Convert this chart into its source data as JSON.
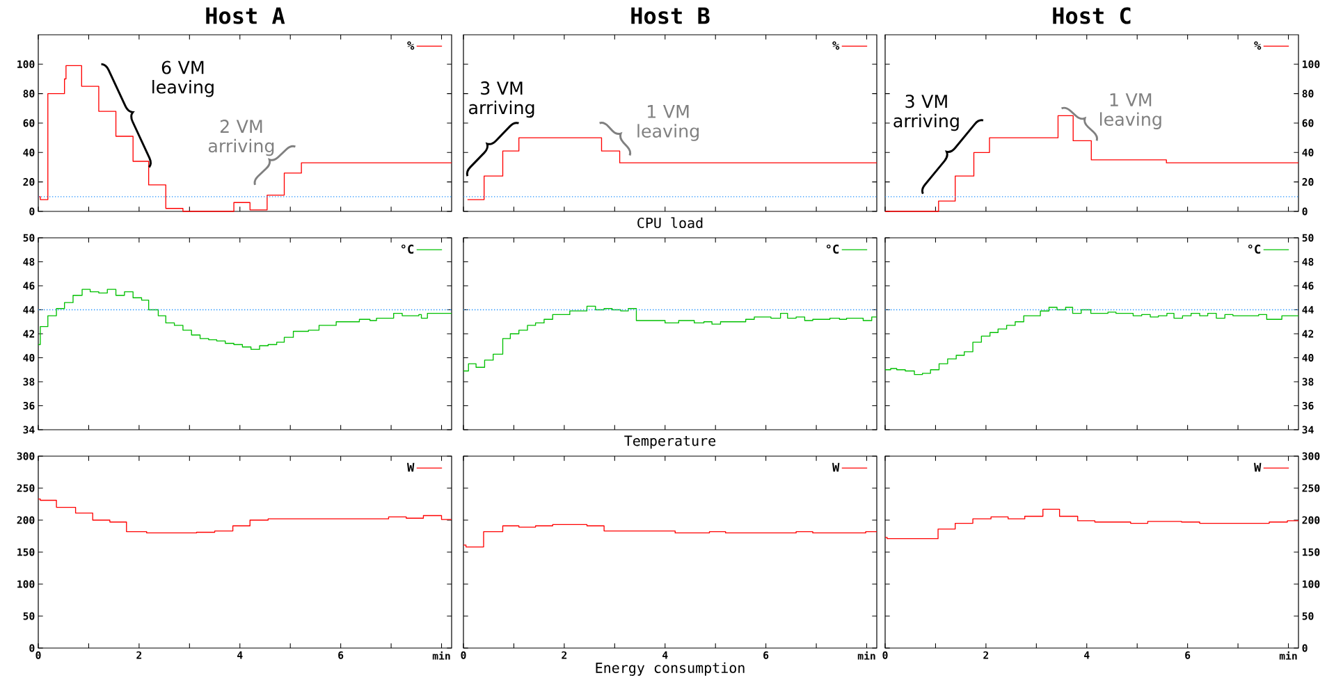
{
  "chart_data": [
    {
      "type": "step",
      "title": "Host A",
      "xlim": [
        0,
        8.2
      ],
      "xticks": [
        0,
        {
          "value": 1,
          "label": null
        },
        2,
        {
          "value": 3,
          "label": null
        },
        4,
        {
          "value": 5,
          "label": null
        },
        6,
        {
          "value": 7,
          "label": null
        },
        {
          "value": 8,
          "label": null
        }
      ],
      "ylim": [
        0,
        120
      ],
      "yticks": [
        0,
        20,
        40,
        60,
        80,
        100
      ],
      "tick_labels": "y",
      "legend": "top right",
      "ref_lines": [
        {
          "axis": "y",
          "value": 10,
          "color": "#1e90ff",
          "line_style": "dotted"
        }
      ],
      "annotations": [
        "6 VM leaving",
        "2 VM arriving"
      ],
      "series": [
        {
          "name": "%",
          "color": "#ff0000",
          "x": [
            0,
            0.04,
            0.19,
            0.52,
            0.55,
            0.86,
            1.2,
            1.54,
            1.88,
            2.19,
            2.53,
            2.87,
            3.88,
            4.2,
            4.54,
            4.88,
            5.22,
            8.2
          ],
          "values": [
            10,
            8,
            80,
            90,
            99,
            85,
            68,
            51,
            34,
            18,
            2,
            0,
            6,
            1,
            11,
            26,
            33,
            33
          ]
        }
      ]
    },
    {
      "type": "step",
      "title": "Host B",
      "xlabel": "CPU load",
      "xlim": [
        0,
        8.2
      ],
      "xticks": [
        0,
        {
          "value": 1,
          "label": null
        },
        2,
        {
          "value": 3,
          "label": null
        },
        4,
        {
          "value": 5,
          "label": null
        },
        6,
        {
          "value": 7,
          "label": null
        },
        {
          "value": 8,
          "label": null
        }
      ],
      "ylim": [
        0,
        120
      ],
      "yticks": [
        0,
        20,
        40,
        60,
        80,
        100
      ],
      "tick_labels": false,
      "legend": "top right",
      "ref_lines": [
        {
          "axis": "y",
          "value": 10,
          "color": "#1e90ff",
          "line_style": "dotted"
        }
      ],
      "annotations": [
        "3 VM arriving",
        "1 VM leaving"
      ],
      "series": [
        {
          "name": "%",
          "color": "#ff0000",
          "x": [
            0.08,
            0.41,
            0.78,
            1.1,
            2.74,
            3.1,
            8.2
          ],
          "values": [
            8,
            24,
            41,
            50,
            41,
            33,
            33
          ]
        }
      ]
    },
    {
      "type": "step",
      "title": "Host C",
      "xlim": [
        0,
        8.2
      ],
      "xticks": [
        0,
        {
          "value": 1,
          "label": null
        },
        2,
        {
          "value": 3,
          "label": null
        },
        4,
        {
          "value": 5,
          "label": null
        },
        6,
        {
          "value": 7,
          "label": null
        },
        {
          "value": 8,
          "label": null
        }
      ],
      "ylim": [
        0,
        120
      ],
      "yticks": [
        0,
        20,
        40,
        60,
        80,
        100
      ],
      "tick_labels": "y",
      "legend": "top right",
      "ref_lines": [
        {
          "axis": "y",
          "value": 10,
          "color": "#1e90ff",
          "line_style": "dotted"
        }
      ],
      "annotations": [
        "3 VM arriving",
        "1 VM leaving"
      ],
      "series": [
        {
          "name": "%",
          "color": "#ff0000",
          "x": [
            0,
            1.06,
            1.39,
            1.76,
            2.07,
            3.43,
            3.73,
            4.09,
            5.58,
            8.2
          ],
          "values": [
            0,
            7,
            24,
            40,
            50,
            65,
            48,
            35,
            33,
            33
          ]
        }
      ]
    },
    {
      "type": "step",
      "xlim": [
        0,
        8.2
      ],
      "xticks": [
        0,
        {
          "value": 1,
          "label": null
        },
        2,
        {
          "value": 3,
          "label": null
        },
        4,
        {
          "value": 5,
          "label": null
        },
        6,
        {
          "value": 7,
          "label": null
        },
        {
          "value": 8,
          "label": null
        }
      ],
      "ylim": [
        34,
        50
      ],
      "yticks": [
        34,
        36,
        38,
        40,
        42,
        44,
        46,
        48,
        50
      ],
      "tick_labels": "y",
      "legend": "top right",
      "ref_lines": [
        {
          "axis": "y",
          "value": 44,
          "color": "#1e90ff",
          "line_style": "dotted"
        }
      ],
      "series": [
        {
          "name": "°C",
          "color": "#00c000",
          "x": [
            0,
            0.04,
            0.19,
            0.36,
            0.52,
            0.69,
            0.87,
            1.03,
            1.2,
            1.37,
            1.54,
            1.71,
            1.88,
            2.05,
            2.19,
            2.38,
            2.53,
            2.7,
            2.87,
            3.04,
            3.21,
            3.38,
            3.54,
            3.71,
            3.88,
            4.05,
            4.22,
            4.39,
            4.56,
            4.73,
            4.88,
            5.06,
            5.36,
            5.57,
            5.91,
            6.37,
            6.58,
            6.71,
            7.05,
            7.22,
            7.55,
            7.6,
            7.72,
            8.2
          ],
          "values": [
            41.1,
            42.6,
            43.5,
            44.1,
            44.6,
            45.2,
            45.7,
            45.5,
            45.4,
            45.7,
            45.2,
            45.5,
            45.0,
            44.8,
            44.0,
            43.5,
            42.9,
            42.7,
            42.3,
            41.9,
            41.6,
            41.5,
            41.4,
            41.2,
            41.1,
            40.9,
            40.7,
            41.0,
            41.1,
            41.3,
            41.7,
            42.2,
            42.3,
            42.7,
            43.0,
            43.2,
            43.1,
            43.3,
            43.7,
            43.5,
            43.6,
            43.3,
            43.7,
            43.7
          ]
        }
      ]
    },
    {
      "type": "step",
      "xlabel": "Temperature",
      "xlim": [
        0,
        8.2
      ],
      "xticks": [
        0,
        {
          "value": 1,
          "label": null
        },
        2,
        {
          "value": 3,
          "label": null
        },
        4,
        {
          "value": 5,
          "label": null
        },
        6,
        {
          "value": 7,
          "label": null
        },
        {
          "value": 8,
          "label": null
        }
      ],
      "ylim": [
        34,
        50
      ],
      "yticks": [
        34,
        36,
        38,
        40,
        42,
        44,
        46,
        48,
        50
      ],
      "tick_labels": false,
      "legend": "top right",
      "ref_lines": [
        {
          "axis": "y",
          "value": 44,
          "color": "#1e90ff",
          "line_style": "dotted"
        }
      ],
      "series": [
        {
          "name": "°C",
          "color": "#00c000",
          "x": [
            0,
            0.1,
            0.25,
            0.42,
            0.59,
            0.78,
            0.93,
            1.1,
            1.27,
            1.43,
            1.6,
            1.77,
            2.11,
            2.45,
            2.62,
            2.79,
            2.95,
            3.12,
            3.27,
            3.43,
            4.0,
            4.27,
            4.58,
            4.77,
            4.93,
            5.1,
            5.6,
            5.77,
            6.1,
            6.29,
            6.43,
            6.6,
            6.77,
            6.93,
            7.27,
            7.46,
            7.6,
            7.93,
            8.1,
            8.2
          ],
          "values": [
            38.9,
            39.5,
            39.2,
            39.8,
            40.3,
            41.6,
            42.0,
            42.3,
            42.7,
            42.9,
            43.2,
            43.6,
            43.9,
            44.3,
            44.0,
            44.1,
            44.0,
            43.9,
            44.1,
            43.1,
            42.9,
            43.1,
            42.9,
            43.0,
            42.8,
            43.0,
            43.2,
            43.4,
            43.3,
            43.7,
            43.3,
            43.4,
            43.1,
            43.2,
            43.3,
            43.2,
            43.3,
            43.1,
            43.4,
            43.4
          ]
        }
      ]
    },
    {
      "type": "step",
      "xlim": [
        0,
        8.2
      ],
      "xticks": [
        0,
        {
          "value": 1,
          "label": null
        },
        2,
        {
          "value": 3,
          "label": null
        },
        4,
        {
          "value": 5,
          "label": null
        },
        6,
        {
          "value": 7,
          "label": null
        },
        {
          "value": 8,
          "label": null
        }
      ],
      "ylim": [
        34,
        50
      ],
      "yticks": [
        34,
        36,
        38,
        40,
        42,
        44,
        46,
        48,
        50
      ],
      "tick_labels": "y",
      "legend": "top right",
      "ref_lines": [
        {
          "axis": "y",
          "value": 44,
          "color": "#1e90ff",
          "line_style": "dotted"
        }
      ],
      "series": [
        {
          "name": "°C",
          "color": "#00c000",
          "x": [
            0,
            0.11,
            0.23,
            0.4,
            0.58,
            0.74,
            0.9,
            1.07,
            1.24,
            1.41,
            1.57,
            1.74,
            1.91,
            2.08,
            2.24,
            2.41,
            2.58,
            2.75,
            3.08,
            3.25,
            3.41,
            3.58,
            3.72,
            3.89,
            4.08,
            4.42,
            4.58,
            4.92,
            5.09,
            5.26,
            5.42,
            5.59,
            5.73,
            5.9,
            6.07,
            6.24,
            6.4,
            6.57,
            6.74,
            6.9,
            7.41,
            7.57,
            7.87,
            8.2
          ],
          "values": [
            39.0,
            39.1,
            39.0,
            38.9,
            38.6,
            38.7,
            39.0,
            39.5,
            39.9,
            40.2,
            40.5,
            41.3,
            41.8,
            42.1,
            42.4,
            42.7,
            43.0,
            43.5,
            43.9,
            44.2,
            44.0,
            44.2,
            43.7,
            44.0,
            43.7,
            43.8,
            43.7,
            43.5,
            43.6,
            43.4,
            43.5,
            43.7,
            43.3,
            43.5,
            43.7,
            43.5,
            43.7,
            43.3,
            43.6,
            43.5,
            43.6,
            43.2,
            43.5,
            43.5
          ]
        }
      ]
    },
    {
      "type": "step",
      "xlim": [
        0,
        8.2
      ],
      "xticks": [
        0,
        {
          "value": 1,
          "label": null
        },
        2,
        {
          "value": 3,
          "label": null
        },
        4,
        {
          "value": 5,
          "label": null
        },
        6,
        {
          "value": 7,
          "label": null
        },
        {
          "value": 8,
          "label": "min"
        }
      ],
      "ylim": [
        0,
        300
      ],
      "yticks": [
        0,
        50,
        100,
        150,
        200,
        250,
        300
      ],
      "legend": "top right",
      "series": [
        {
          "name": "W",
          "color": "#ff0000",
          "x": [
            0,
            0.04,
            0.36,
            0.74,
            1.08,
            1.42,
            1.75,
            2.15,
            3.14,
            3.5,
            3.86,
            4.2,
            4.56,
            6.95,
            7.3,
            7.64,
            8.0,
            8.2
          ],
          "values": [
            233,
            231,
            220,
            211,
            200,
            197,
            182,
            180,
            181,
            183,
            191,
            200,
            202,
            205,
            203,
            207,
            201,
            201
          ]
        }
      ]
    },
    {
      "type": "step",
      "xlabel": "Energy consumption",
      "xlim": [
        0,
        8.2
      ],
      "xticks": [
        0,
        {
          "value": 1,
          "label": null
        },
        2,
        {
          "value": 3,
          "label": null
        },
        4,
        {
          "value": 5,
          "label": null
        },
        6,
        {
          "value": 7,
          "label": null
        },
        {
          "value": 8,
          "label": "min"
        }
      ],
      "ylim": [
        0,
        300
      ],
      "yticks": [
        0,
        50,
        100,
        150,
        200,
        250,
        300
      ],
      "tick_labels": "x",
      "legend": "top right",
      "series": [
        {
          "name": "W",
          "color": "#ff0000",
          "x": [
            0,
            0.05,
            0.4,
            0.78,
            1.1,
            1.43,
            1.77,
            2.45,
            2.79,
            4.2,
            4.88,
            5.2,
            6.6,
            6.93,
            7.98,
            8.2
          ],
          "values": [
            161,
            158,
            182,
            191,
            189,
            191,
            193,
            191,
            183,
            180,
            182,
            180,
            182,
            180,
            182,
            182
          ]
        }
      ]
    },
    {
      "type": "step",
      "xlim": [
        0,
        8.2
      ],
      "xticks": [
        0,
        {
          "value": 1,
          "label": null
        },
        2,
        {
          "value": 3,
          "label": null
        },
        4,
        {
          "value": 5,
          "label": null
        },
        6,
        {
          "value": 7,
          "label": null
        },
        {
          "value": 8,
          "label": "min"
        }
      ],
      "ylim": [
        0,
        300
      ],
      "yticks": [
        0,
        50,
        100,
        150,
        200,
        250,
        300
      ],
      "legend": "top right",
      "series": [
        {
          "name": "W",
          "color": "#ff0000",
          "x": [
            0,
            0.04,
            1.05,
            1.39,
            1.74,
            2.1,
            2.44,
            2.77,
            3.13,
            3.46,
            3.82,
            4.16,
            4.87,
            5.21,
            5.88,
            6.24,
            7.62,
            7.98,
            8.2
          ],
          "values": [
            173,
            171,
            186,
            195,
            202,
            205,
            202,
            206,
            217,
            206,
            199,
            197,
            195,
            198,
            197,
            195,
            197,
            199,
            199
          ]
        }
      ]
    }
  ]
}
